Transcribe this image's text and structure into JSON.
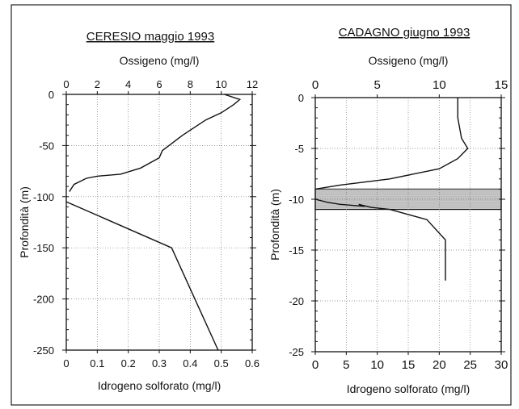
{
  "chart_data": [
    {
      "type": "line",
      "title": "CERESIO   maggio   1993",
      "top_axis_label": "Ossigeno  (mg/l)",
      "bottom_axis_label": "Idrogeno  solforato  (mg/l)",
      "ylabel": "Profondità  (m)",
      "top_ticks": [
        "0",
        "2",
        "4",
        "6",
        "8",
        "10",
        "12"
      ],
      "bottom_ticks": [
        "0",
        "0.1",
        "0.2",
        "0.3",
        "0.4",
        "0.5",
        "0.6"
      ],
      "y_ticks": [
        "0",
        "-50",
        "-100",
        "-150",
        "-200",
        "-250"
      ],
      "top_xlim": [
        0,
        12
      ],
      "bottom_xlim": [
        0,
        0.6
      ],
      "ylim": [
        -250,
        0
      ],
      "grid": "vertical dotted, horizontal dotted",
      "series": [
        {
          "axis": "top",
          "x": [
            10.2,
            11.2,
            10.8,
            10.0,
            9.0,
            7.5,
            6.2,
            6.0,
            4.8,
            3.5,
            2.0,
            1.3,
            0.5,
            0.2
          ],
          "y": [
            0,
            -5,
            -10,
            -18,
            -25,
            -40,
            -55,
            -62,
            -72,
            -78,
            -80,
            -82,
            -88,
            -95
          ]
        },
        {
          "axis": "bottom",
          "x": [
            0.0,
            0.34,
            0.49
          ],
          "y": [
            -105,
            -150,
            -250
          ]
        }
      ]
    },
    {
      "type": "line",
      "title": "CADAGNO   giugno   1993",
      "top_axis_label": "Ossigeno  (mg/l)",
      "bottom_axis_label": "Idrogeno  solforato  (mg/l)",
      "ylabel": "Profondità  (m)",
      "top_ticks": [
        "0",
        "5",
        "10",
        "15"
      ],
      "bottom_ticks": [
        "0",
        "5",
        "10",
        "15",
        "20",
        "25",
        "30"
      ],
      "y_ticks": [
        "0",
        "-5",
        "-10",
        "-15",
        "-20",
        "-25"
      ],
      "top_xlim": [
        0,
        15
      ],
      "bottom_xlim": [
        0,
        30
      ],
      "ylim": [
        -25,
        0
      ],
      "grid": "vertical dotted, horizontal dotted",
      "shaded_band": [
        -9,
        -11
      ],
      "series": [
        {
          "axis": "top",
          "x": [
            11.5,
            11.5,
            11.8,
            12.3,
            11.5,
            10.0,
            6.0,
            2.0,
            0.0
          ],
          "y": [
            0,
            -2,
            -4,
            -5,
            -6,
            -7,
            -8,
            -8.6,
            -9
          ]
        },
        {
          "axis": "bottom",
          "x": [
            0,
            2,
            4,
            8,
            7,
            9,
            12,
            18,
            21,
            21,
            21
          ],
          "y": [
            -10,
            -10.3,
            -10.5,
            -10.7,
            -10.5,
            -10.8,
            -11,
            -12,
            -14,
            -15,
            -18
          ]
        }
      ]
    }
  ]
}
